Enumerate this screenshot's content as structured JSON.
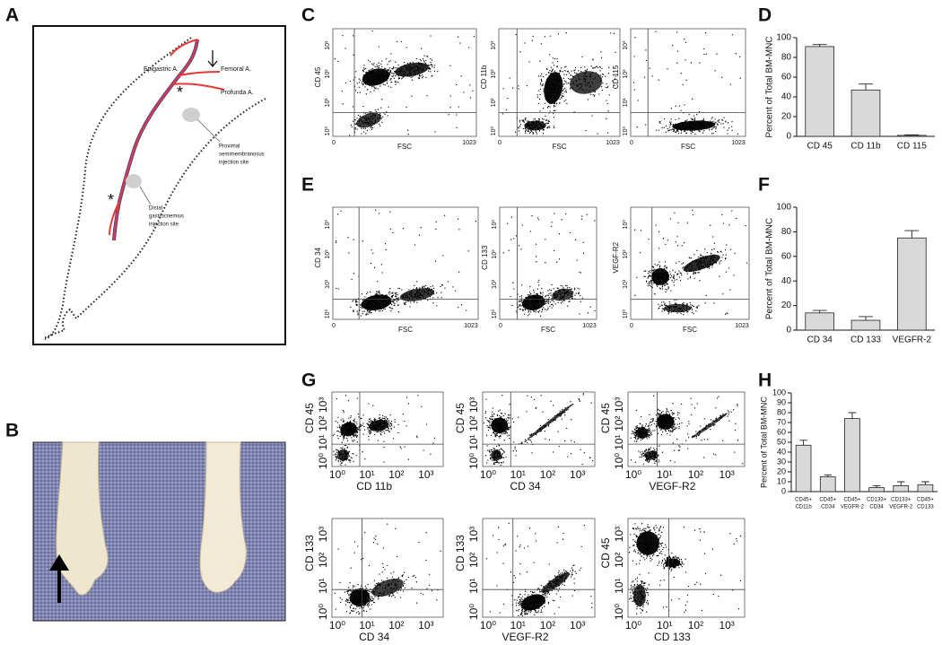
{
  "panels": {
    "A": {
      "label": "A",
      "labels": {
        "epigastric": "Epigastric A.",
        "femoral": "Femoral A.",
        "profunda": "Profunda A.",
        "proximal": [
          "Proximal",
          "semimembranosus",
          "injection site"
        ],
        "distal": [
          "Distal",
          "gastrocnemius",
          "injection site"
        ]
      },
      "markers": [
        "*",
        "*"
      ]
    },
    "B": {
      "label": "B"
    },
    "C": {
      "label": "C",
      "plots": [
        {
          "y_label": "CD 45",
          "x_label": "FSC"
        },
        {
          "y_label": "CD 11b",
          "x_label": "FSC"
        },
        {
          "y_label": "CD 115",
          "x_label": "FSC"
        }
      ]
    },
    "E": {
      "label": "E",
      "plots": [
        {
          "y_label": "CD 34",
          "x_label": "FSC"
        },
        {
          "y_label": "CD 133",
          "x_label": "FSC"
        },
        {
          "y_label": "VEGF-R2",
          "x_label": "FSC"
        }
      ]
    },
    "G": {
      "label": "G",
      "plots": [
        {
          "y_label": "CD 45",
          "x_label": "CD 11b"
        },
        {
          "y_label": "CD 45",
          "x_label": "CD 34"
        },
        {
          "y_label": "CD 45",
          "x_label": "VEGF-R2"
        },
        {
          "y_label": "CD 133",
          "x_label": "CD 34"
        },
        {
          "y_label": "CD 133",
          "x_label": "VEGF-R2"
        },
        {
          "y_label": "CD 45",
          "x_label": "CD 133"
        }
      ]
    }
  },
  "scatter_axes": {
    "fsc_ticks": [
      "0",
      "1023"
    ],
    "log_ticks": [
      "10⁰",
      "10¹",
      "10²",
      "10³"
    ]
  },
  "chart_data": [
    {
      "type": "bar",
      "panel_label": "D",
      "y_label": "Percent of Total BM-MNC",
      "categories": [
        "CD 45",
        "CD 11b",
        "CD 115"
      ],
      "values": [
        91,
        47,
        1
      ],
      "errors": [
        2,
        6,
        0.5
      ],
      "color": "#d9d9d9",
      "ylim": [
        0,
        100
      ],
      "yticks": [
        0,
        20,
        40,
        60,
        80,
        100
      ]
    },
    {
      "type": "bar",
      "panel_label": "F",
      "y_label": "Percent of Total BM-MNC",
      "categories": [
        "CD 34",
        "CD 133",
        "VEGFR-2"
      ],
      "values": [
        14,
        8,
        75
      ],
      "errors": [
        2,
        3,
        6
      ],
      "color": "#d9d9d9",
      "ylim": [
        0,
        100
      ],
      "yticks": [
        0,
        20,
        40,
        60,
        80,
        100
      ]
    },
    {
      "type": "bar",
      "panel_label": "H",
      "y_label": "Percent of Total BM-MNC",
      "categories": [
        [
          "CD45+",
          "CD11b"
        ],
        [
          "CD45+",
          "CD34"
        ],
        [
          "CD45+",
          "VEGFR-2"
        ],
        [
          "CD133+",
          "CD34"
        ],
        [
          "CD133+",
          "VEGFR-2"
        ],
        [
          "CD45+",
          "CD133"
        ]
      ],
      "values": [
        47,
        15,
        74,
        4,
        6,
        7
      ],
      "errors": [
        5,
        2,
        6,
        2,
        4,
        3
      ],
      "color": "#d9d9d9",
      "ylim": [
        0,
        100
      ],
      "yticks": [
        0,
        10,
        20,
        30,
        40,
        50,
        60,
        70,
        80,
        90,
        100
      ]
    }
  ]
}
